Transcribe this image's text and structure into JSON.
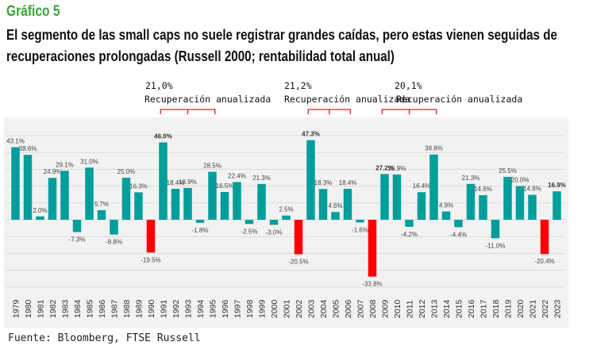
{
  "header": {
    "kicker": "Gráfico 5",
    "title": "El segmento de las small caps no suele registrar grandes caídas, pero estas vienen seguidas de recuperaciones prolongadas (Russell 2000; rentabilidad total anual)"
  },
  "source": "Fuente: Bloomberg, FTSE Russell",
  "chart_data": {
    "type": "bar",
    "title": "",
    "xlabel": "",
    "ylabel": "",
    "ylim": [
      -40,
      60
    ],
    "grid": true,
    "value_format": "%",
    "categories": [
      "1979",
      "1980",
      "1981",
      "1982",
      "1983",
      "1984",
      "1985",
      "1986",
      "1987",
      "1988",
      "1989",
      "1990",
      "1991",
      "1992",
      "1993",
      "1994",
      "1995",
      "1996",
      "1997",
      "1998",
      "1999",
      "2000",
      "2001",
      "2002",
      "2003",
      "2004",
      "2005",
      "2006",
      "2007",
      "2008",
      "2009",
      "2010",
      "2011",
      "2012",
      "2013",
      "2014",
      "2015",
      "2016",
      "2017",
      "2018",
      "2019",
      "2020",
      "2021",
      "2022",
      "2023"
    ],
    "values": [
      43.1,
      38.6,
      2.0,
      24.9,
      29.1,
      -7.3,
      31.0,
      5.7,
      -8.8,
      25.0,
      16.3,
      -19.5,
      46.0,
      18.4,
      18.9,
      -1.8,
      28.5,
      16.5,
      22.4,
      -2.5,
      21.3,
      -3.0,
      2.5,
      -20.5,
      47.3,
      18.3,
      4.6,
      18.4,
      -1.6,
      -33.8,
      27.2,
      26.9,
      -4.2,
      16.4,
      38.8,
      4.9,
      -4.4,
      21.3,
      14.6,
      -11.0,
      25.5,
      20.0,
      14.8,
      -20.4,
      16.9
    ],
    "highlight_years": [
      "1990",
      "2002",
      "2008",
      "2022"
    ],
    "bold_label_years": [
      "1991",
      "2003",
      "2009",
      "2023"
    ],
    "colors": {
      "normal": "#009e9b",
      "highlight": "#ff0000",
      "bracket": "#e0202a",
      "plot_bg": "#f2f2f2",
      "grid": "#d9d9d9"
    },
    "annotations": [
      {
        "value": "21,0%",
        "text": "Recuperación anualizada",
        "from": "1991",
        "to": "1995"
      },
      {
        "value": "21,2%",
        "text": "Recuperación anualizada",
        "from": "2003",
        "to": "2006"
      },
      {
        "value": "20,1%",
        "text": "Recuperación anualizada",
        "from": "2009",
        "to": "2013"
      }
    ]
  }
}
